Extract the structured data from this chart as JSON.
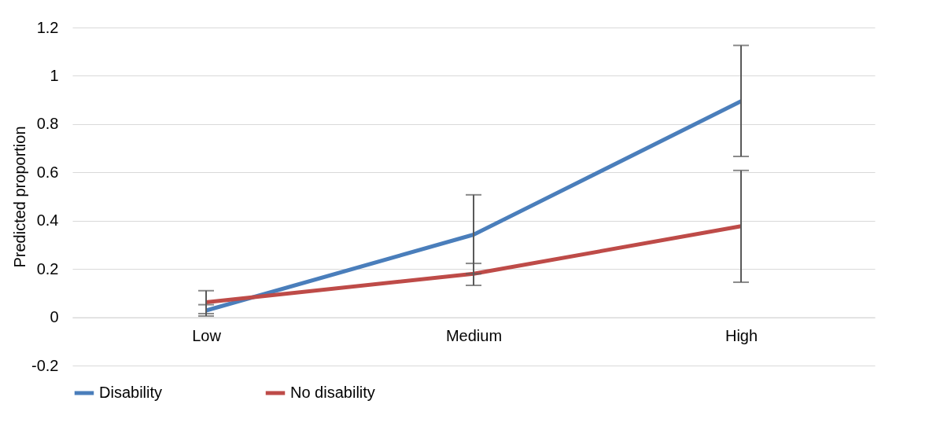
{
  "chart_data": {
    "type": "line",
    "ylabel": "Predicted proportion",
    "categories": [
      "Low",
      "Medium",
      "High"
    ],
    "series": [
      {
        "name": "Disability",
        "color": "#4a7ebb",
        "values": [
          0.028,
          0.342,
          0.895
        ],
        "errors": [
          [
            0.005,
            0.052
          ],
          [
            0.18,
            0.507
          ],
          [
            0.666,
            1.126
          ]
        ]
      },
      {
        "name": "No disability",
        "color": "#be4b48",
        "values": [
          0.062,
          0.18,
          0.377
        ],
        "errors": [
          [
            0.015,
            0.11
          ],
          [
            0.132,
            0.223
          ],
          [
            0.145,
            0.608
          ]
        ]
      }
    ],
    "ylim": [
      -0.2,
      1.2
    ],
    "yticks": [
      -0.2,
      0,
      0.2,
      0.4,
      0.6,
      0.8,
      1,
      1.2
    ],
    "grid": "y",
    "legend": "bottom",
    "marker": "none",
    "line_style": "solid"
  }
}
